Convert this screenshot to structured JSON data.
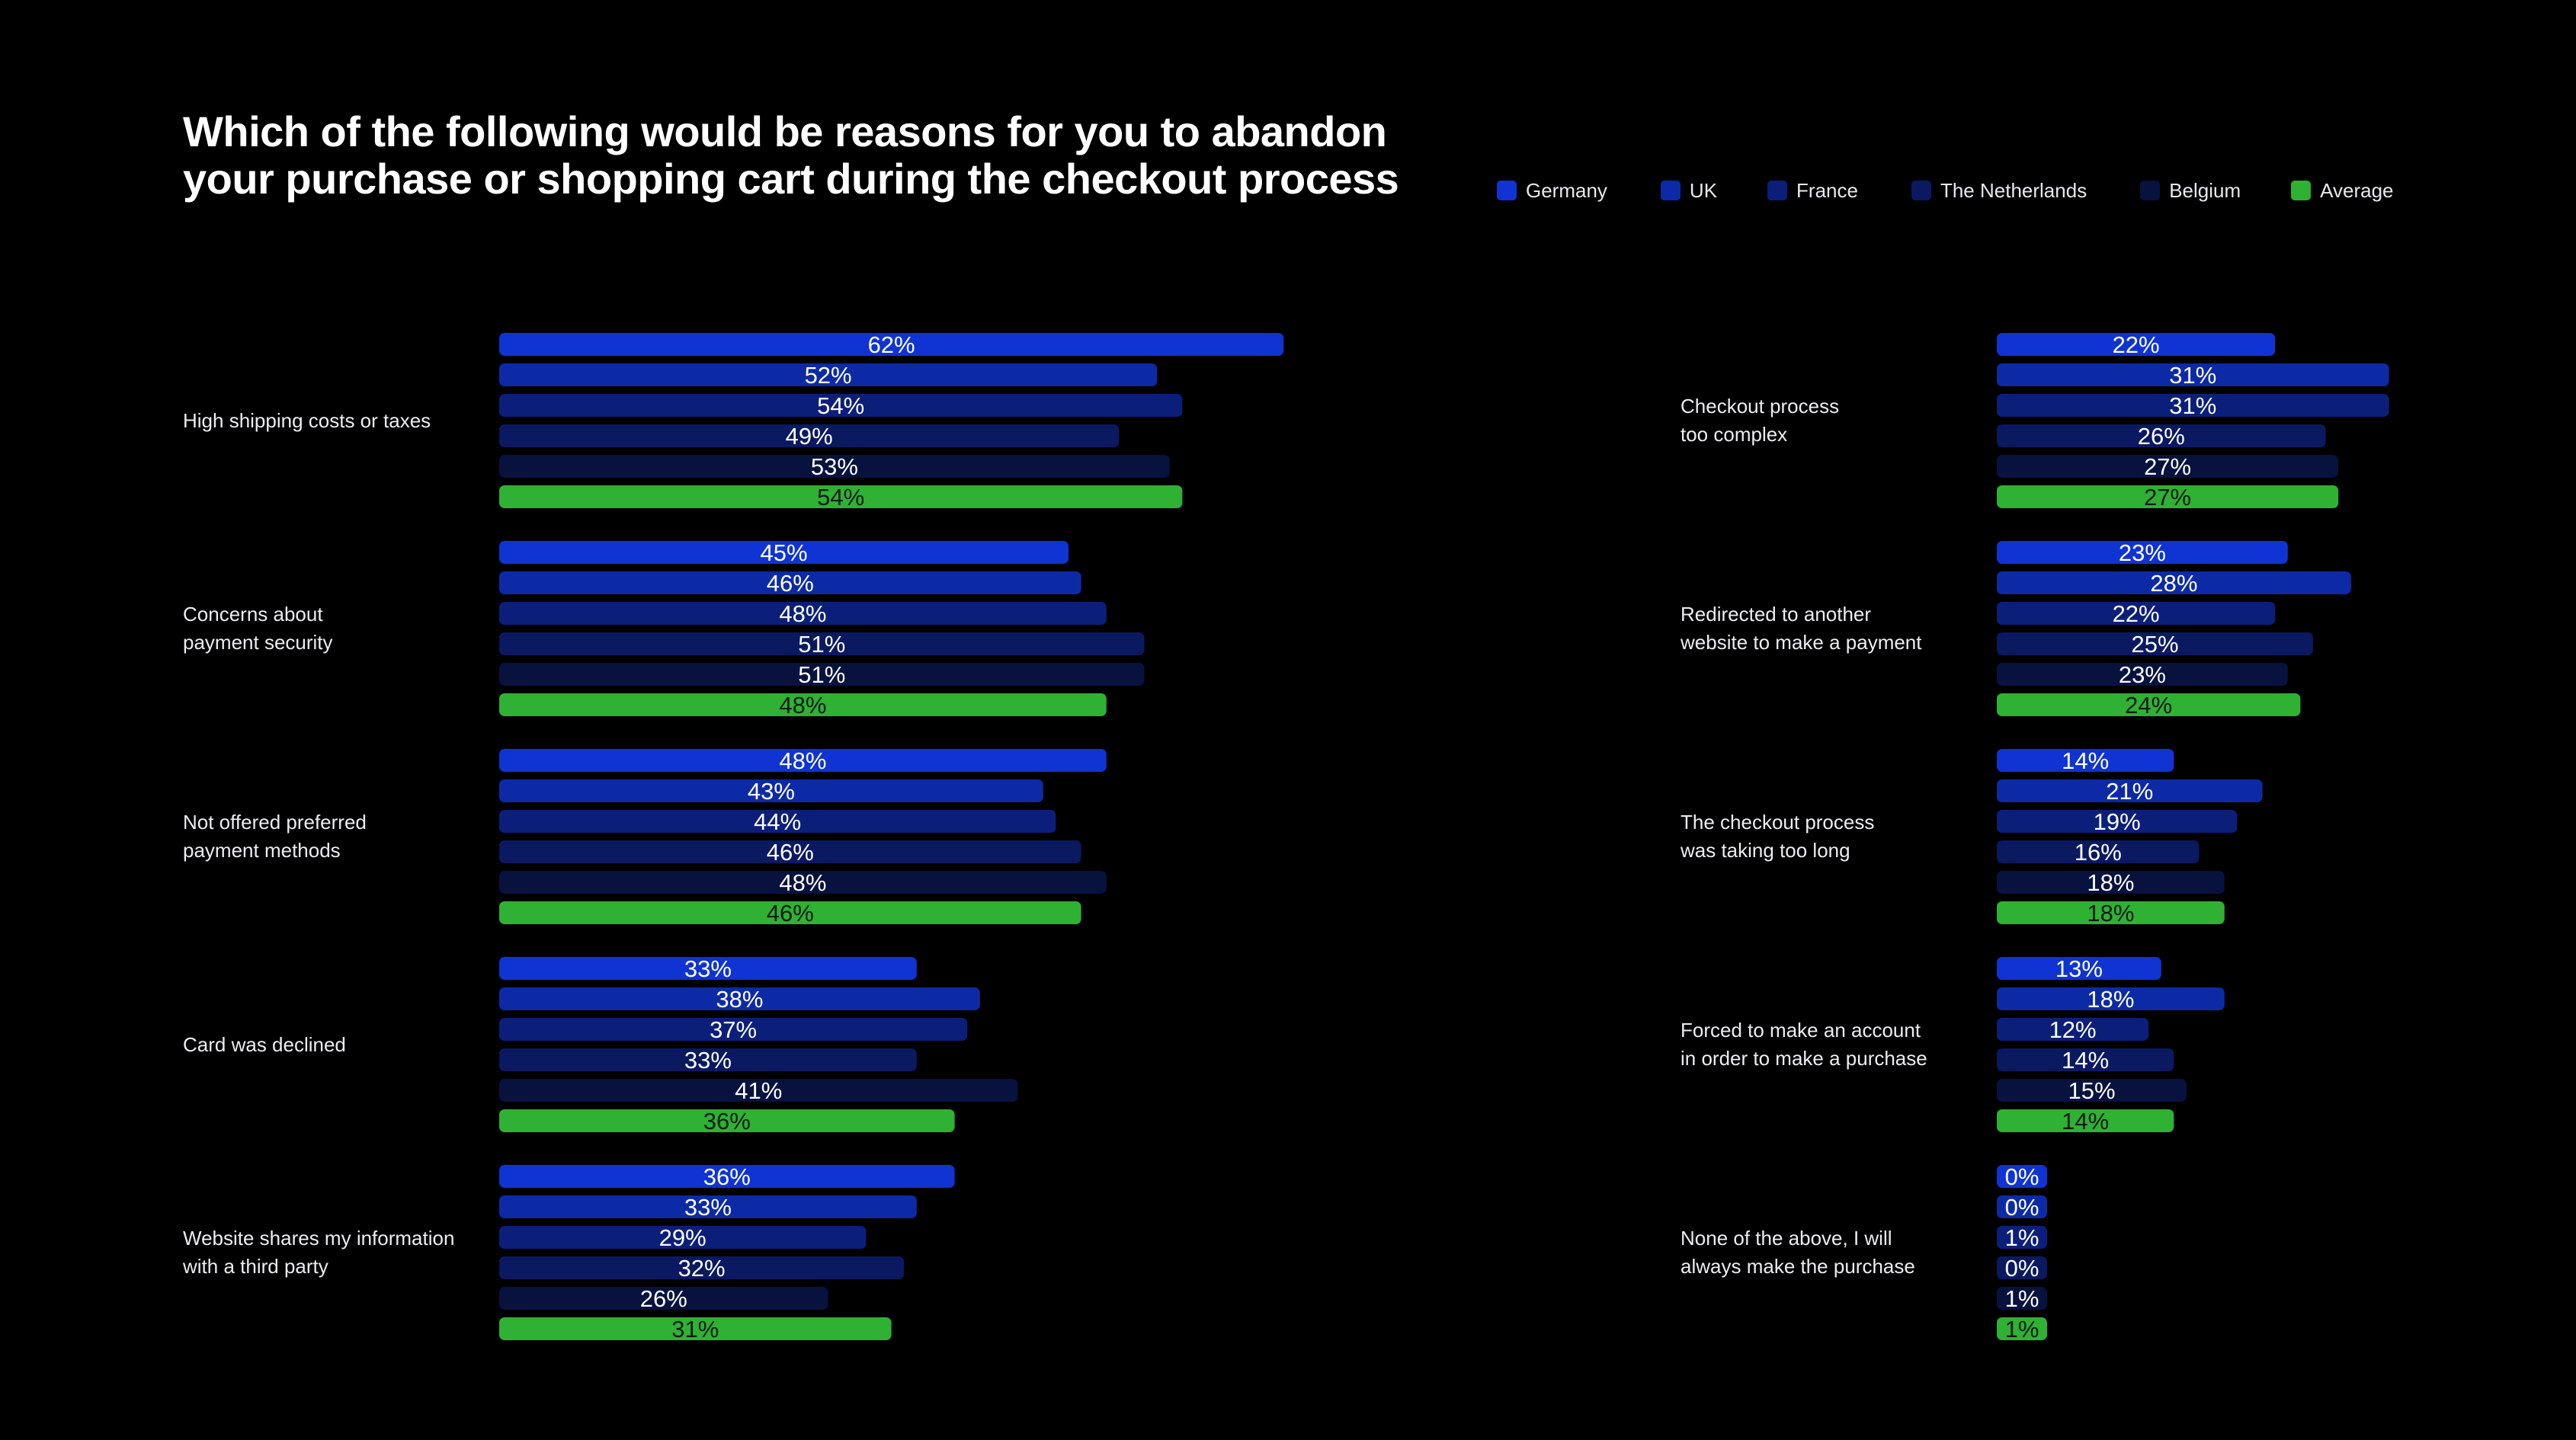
{
  "title_lines": [
    "Which of the following would be reasons for you to abandon",
    "your purchase or shopping cart during the checkout process"
  ],
  "legend": [
    {
      "name": "Germany",
      "color": "#0f34d3"
    },
    {
      "name": "UK",
      "color": "#0d2aa6"
    },
    {
      "name": "France",
      "color": "#0b1f7a"
    },
    {
      "name": "The Netherlands",
      "color": "#0a1960"
    },
    {
      "name": "Belgium",
      "color": "#08123f"
    },
    {
      "name": "Average",
      "color": "#2fb133"
    }
  ],
  "chart_data": {
    "type": "bar",
    "orientation": "horizontal",
    "title": "Which of the following would be reasons for you to abandon your purchase or shopping cart during the checkout process",
    "unit": "%",
    "series_names": [
      "Germany",
      "UK",
      "France",
      "The Netherlands",
      "Belgium",
      "Average"
    ],
    "series_colors": [
      "#0f34d3",
      "#0d2aa6",
      "#0b1f7a",
      "#0a1960",
      "#08123f",
      "#2fb133"
    ],
    "left_panel": [
      {
        "label_lines": [
          "High shipping costs or taxes"
        ],
        "values": [
          62,
          52,
          54,
          49,
          53,
          54
        ]
      },
      {
        "label_lines": [
          "Concerns about",
          "payment security"
        ],
        "values": [
          45,
          46,
          48,
          51,
          51,
          48
        ]
      },
      {
        "label_lines": [
          "Not offered preferred",
          "payment methods"
        ],
        "values": [
          48,
          43,
          44,
          46,
          48,
          46
        ]
      },
      {
        "label_lines": [
          "Card was declined"
        ],
        "values": [
          33,
          38,
          37,
          33,
          41,
          36
        ]
      },
      {
        "label_lines": [
          "Website shares my information",
          "with a third party"
        ],
        "values": [
          36,
          33,
          29,
          32,
          26,
          31
        ]
      }
    ],
    "right_panel": [
      {
        "label_lines": [
          "Checkout process",
          "too complex"
        ],
        "values": [
          22,
          31,
          31,
          26,
          27,
          27
        ]
      },
      {
        "label_lines": [
          "Redirected to another",
          "website to make a payment"
        ],
        "values": [
          23,
          28,
          22,
          25,
          23,
          24
        ]
      },
      {
        "label_lines": [
          "The checkout process",
          "was taking too long"
        ],
        "values": [
          14,
          21,
          19,
          16,
          18,
          18
        ]
      },
      {
        "label_lines": [
          "Forced to make an account",
          "in order to make a purchase"
        ],
        "values": [
          13,
          18,
          12,
          14,
          15,
          14
        ]
      },
      {
        "label_lines": [
          "None of the above, I will",
          "always make the purchase"
        ],
        "values": [
          0,
          0,
          1,
          0,
          1,
          1
        ]
      }
    ]
  }
}
